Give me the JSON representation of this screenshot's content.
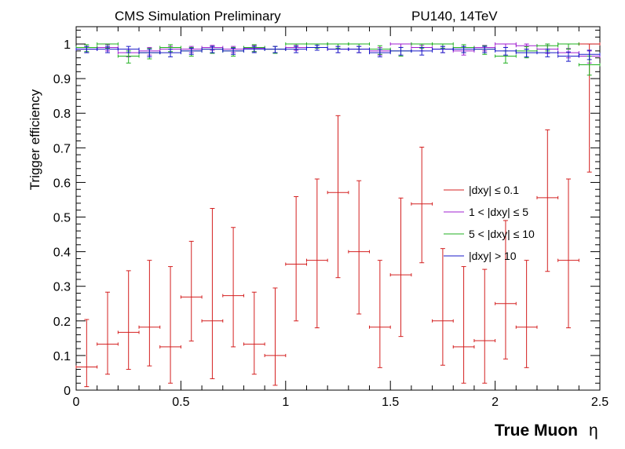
{
  "chart_data": {
    "type": "scatter",
    "title_left": "CMS Simulation Preliminary",
    "title_right": "PU140, 14TeV",
    "xlabel": "True Muon",
    "xlabel_symbol": "η",
    "ylabel": "Trigger efficiency",
    "xlim": [
      0,
      2.5
    ],
    "ylim": [
      0,
      1.05
    ],
    "x_ticks": [
      "0",
      "0.5",
      "1",
      "1.5",
      "2",
      "2.5"
    ],
    "y_ticks": [
      "0",
      "0.1",
      "0.2",
      "0.3",
      "0.4",
      "0.5",
      "0.6",
      "0.7",
      "0.8",
      "0.9",
      "1"
    ],
    "legend_position": "right-middle",
    "bin_edges": [
      0,
      0.1,
      0.2,
      0.3,
      0.4,
      0.5,
      0.6,
      0.7,
      0.8,
      0.9,
      1.0,
      1.1,
      1.2,
      1.3,
      1.4,
      1.5,
      1.6,
      1.7,
      1.8,
      1.9,
      2.0,
      2.1,
      2.2,
      2.3,
      2.4,
      2.5
    ],
    "x": [
      0.05,
      0.15,
      0.25,
      0.35,
      0.45,
      0.55,
      0.65,
      0.75,
      0.85,
      0.95,
      1.05,
      1.15,
      1.25,
      1.35,
      1.45,
      1.55,
      1.65,
      1.75,
      1.85,
      1.95,
      2.05,
      2.15,
      2.25,
      2.35,
      2.45
    ],
    "series": [
      {
        "name": "|dxy| ≤ 0.1",
        "color": "#d42020",
        "values": [
          0.067,
          0.133,
          0.167,
          0.182,
          0.125,
          0.269,
          0.2,
          0.273,
          0.133,
          0.1,
          0.364,
          0.375,
          0.571,
          0.4,
          0.182,
          0.333,
          0.538,
          0.2,
          0.125,
          0.143,
          0.25,
          0.182,
          0.556,
          0.375,
          1.0
        ],
        "err_low": [
          0.057,
          0.087,
          0.107,
          0.112,
          0.105,
          0.127,
          0.167,
          0.148,
          0.087,
          0.086,
          0.164,
          0.195,
          0.246,
          0.18,
          0.117,
          0.178,
          0.17,
          0.128,
          0.105,
          0.123,
          0.16,
          0.117,
          0.213,
          0.195,
          0.37
        ],
        "err_high": [
          0.137,
          0.15,
          0.178,
          0.193,
          0.232,
          0.161,
          0.325,
          0.197,
          0.15,
          0.195,
          0.195,
          0.235,
          0.222,
          0.205,
          0.193,
          0.222,
          0.164,
          0.209,
          0.232,
          0.206,
          0.24,
          0.193,
          0.196,
          0.235,
          0.0
        ]
      },
      {
        "name": "1 < |dxy| ≤ 5",
        "color": "#a020d0",
        "values": [
          0.985,
          0.99,
          0.975,
          0.98,
          0.985,
          0.985,
          0.99,
          0.985,
          0.988,
          0.985,
          0.99,
          1.0,
          0.985,
          0.985,
          0.98,
          1.0,
          0.99,
          0.985,
          0.98,
          0.99,
          1.0,
          0.995,
          0.985,
          0.975,
          0.965
        ],
        "err_low": [
          0.01,
          0.01,
          0.012,
          0.012,
          0.01,
          0.01,
          0.008,
          0.01,
          0.01,
          0.01,
          0.008,
          0.01,
          0.01,
          0.01,
          0.012,
          0.01,
          0.01,
          0.01,
          0.012,
          0.01,
          0.01,
          0.01,
          0.012,
          0.015,
          0.02
        ],
        "err_high": [
          0.008,
          0.008,
          0.01,
          0.01,
          0.008,
          0.008,
          0.006,
          0.008,
          0.008,
          0.008,
          0.006,
          0.0,
          0.008,
          0.008,
          0.01,
          0.0,
          0.006,
          0.008,
          0.01,
          0.006,
          0.0,
          0.005,
          0.01,
          0.012,
          0.015
        ]
      },
      {
        "name": "5 < |dxy| ≤ 10",
        "color": "#20b020",
        "values": [
          0.99,
          1.0,
          0.965,
          0.975,
          0.99,
          0.98,
          0.985,
          0.98,
          0.99,
          0.985,
          1.0,
          1.0,
          1.0,
          1.0,
          0.985,
          0.98,
          1.0,
          1.0,
          0.99,
          0.985,
          0.965,
          0.98,
          0.995,
          1.0,
          0.94
        ],
        "err_low": [
          0.012,
          0.012,
          0.02,
          0.018,
          0.012,
          0.015,
          0.012,
          0.015,
          0.012,
          0.012,
          0.015,
          0.012,
          0.012,
          0.015,
          0.015,
          0.015,
          0.012,
          0.012,
          0.015,
          0.015,
          0.02,
          0.02,
          0.015,
          0.015,
          0.03
        ],
        "err_high": [
          0.008,
          0.0,
          0.015,
          0.012,
          0.008,
          0.01,
          0.008,
          0.01,
          0.008,
          0.008,
          0.0,
          0.0,
          0.0,
          0.0,
          0.01,
          0.01,
          0.0,
          0.0,
          0.008,
          0.01,
          0.015,
          0.012,
          0.005,
          0.0,
          0.025
        ]
      },
      {
        "name": "|dxy| > 10",
        "color": "#1a1ac8",
        "values": [
          0.985,
          0.985,
          0.985,
          0.975,
          0.975,
          0.98,
          0.985,
          0.98,
          0.985,
          0.985,
          0.985,
          0.99,
          0.985,
          0.985,
          0.975,
          0.98,
          0.98,
          0.985,
          0.985,
          0.985,
          0.98,
          0.975,
          0.975,
          0.965,
          0.97
        ],
        "err_low": [
          0.01,
          0.01,
          0.01,
          0.012,
          0.012,
          0.01,
          0.01,
          0.01,
          0.01,
          0.01,
          0.01,
          0.008,
          0.01,
          0.01,
          0.012,
          0.012,
          0.012,
          0.01,
          0.01,
          0.01,
          0.012,
          0.012,
          0.012,
          0.015,
          0.015
        ],
        "err_high": [
          0.008,
          0.008,
          0.008,
          0.01,
          0.01,
          0.008,
          0.008,
          0.008,
          0.008,
          0.008,
          0.008,
          0.006,
          0.008,
          0.008,
          0.01,
          0.01,
          0.01,
          0.008,
          0.008,
          0.008,
          0.01,
          0.01,
          0.01,
          0.012,
          0.012
        ]
      }
    ]
  }
}
